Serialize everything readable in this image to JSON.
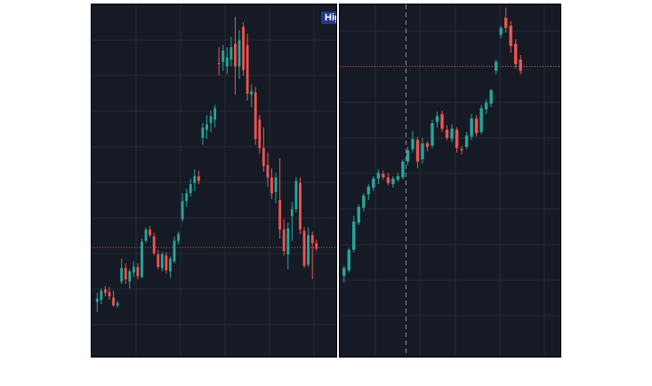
{
  "colors": {
    "background": "#161a25",
    "grid": "#242a37",
    "up": "#26a69a",
    "down": "#ef5350",
    "price_line": "#d2535a",
    "crosshair": "#9598a1"
  },
  "charts": {
    "left": {
      "badge_label": "Hig",
      "price_line_y": 9.0,
      "crosshair_x": null,
      "ylim": [
        0,
        30
      ],
      "candles": [
        {
          "o": 4.2,
          "h": 5.0,
          "l": 3.3,
          "c": 4.5
        },
        {
          "o": 4.4,
          "h": 5.4,
          "l": 4.0,
          "c": 5.2
        },
        {
          "o": 5.3,
          "h": 5.6,
          "l": 4.7,
          "c": 5.0
        },
        {
          "o": 5.1,
          "h": 5.5,
          "l": 4.4,
          "c": 4.7
        },
        {
          "o": 4.6,
          "h": 5.2,
          "l": 3.8,
          "c": 3.9
        },
        {
          "o": 3.9,
          "h": 4.3,
          "l": 3.7,
          "c": 4.1
        },
        {
          "o": 6.0,
          "h": 8.0,
          "l": 5.8,
          "c": 7.2
        },
        {
          "o": 7.2,
          "h": 7.6,
          "l": 5.8,
          "c": 6.2
        },
        {
          "o": 6.0,
          "h": 7.1,
          "l": 5.4,
          "c": 6.9
        },
        {
          "o": 6.8,
          "h": 7.8,
          "l": 6.4,
          "c": 7.3
        },
        {
          "o": 7.3,
          "h": 7.6,
          "l": 6.2,
          "c": 6.5
        },
        {
          "o": 6.4,
          "h": 9.8,
          "l": 6.3,
          "c": 9.5
        },
        {
          "o": 9.6,
          "h": 10.8,
          "l": 9.4,
          "c": 10.6
        },
        {
          "o": 10.6,
          "h": 10.9,
          "l": 9.9,
          "c": 10.1
        },
        {
          "o": 10.0,
          "h": 10.3,
          "l": 8.3,
          "c": 8.5
        },
        {
          "o": 8.4,
          "h": 8.8,
          "l": 7.1,
          "c": 7.3
        },
        {
          "o": 7.2,
          "h": 8.6,
          "l": 6.9,
          "c": 8.4
        },
        {
          "o": 8.3,
          "h": 8.6,
          "l": 6.7,
          "c": 7.0
        },
        {
          "o": 6.9,
          "h": 8.2,
          "l": 6.3,
          "c": 8.0
        },
        {
          "o": 7.8,
          "h": 10.0,
          "l": 7.6,
          "c": 9.6
        },
        {
          "o": 9.6,
          "h": 10.4,
          "l": 9.3,
          "c": 10.2
        },
        {
          "o": 11.5,
          "h": 13.8,
          "l": 11.3,
          "c": 13.1
        },
        {
          "o": 13.1,
          "h": 14.2,
          "l": 12.6,
          "c": 13.8
        },
        {
          "o": 13.8,
          "h": 15.1,
          "l": 13.5,
          "c": 14.6
        },
        {
          "o": 14.7,
          "h": 15.9,
          "l": 14.0,
          "c": 15.3
        },
        {
          "o": 15.3,
          "h": 15.8,
          "l": 14.6,
          "c": 14.9
        },
        {
          "o": 18.7,
          "h": 20.0,
          "l": 18.1,
          "c": 19.6
        },
        {
          "o": 19.4,
          "h": 20.7,
          "l": 18.6,
          "c": 19.9
        },
        {
          "o": 20.0,
          "h": 21.1,
          "l": 19.2,
          "c": 20.6
        },
        {
          "o": 20.3,
          "h": 21.6,
          "l": 19.6,
          "c": 21.3
        },
        {
          "o": 25.3,
          "h": 26.7,
          "l": 24.2,
          "c": 25.2
        },
        {
          "o": 25.4,
          "h": 26.9,
          "l": 24.6,
          "c": 26.4
        },
        {
          "o": 25.0,
          "h": 26.7,
          "l": 24.3,
          "c": 25.8
        },
        {
          "o": 25.6,
          "h": 27.6,
          "l": 25.0,
          "c": 26.7
        },
        {
          "o": 27.0,
          "h": 29.4,
          "l": 22.5,
          "c": 25.0
        },
        {
          "o": 25.0,
          "h": 28.2,
          "l": 23.9,
          "c": 27.3
        },
        {
          "o": 28.5,
          "h": 28.9,
          "l": 24.2,
          "c": 24.7
        },
        {
          "o": 26.9,
          "h": 27.9,
          "l": 22.0,
          "c": 22.6
        },
        {
          "o": 22.5,
          "h": 23.4,
          "l": 21.4,
          "c": 22.8
        },
        {
          "o": 22.7,
          "h": 23.2,
          "l": 18.1,
          "c": 18.6
        },
        {
          "o": 20.3,
          "h": 20.7,
          "l": 17.3,
          "c": 17.8
        },
        {
          "o": 17.8,
          "h": 19.6,
          "l": 15.7,
          "c": 16.2
        },
        {
          "o": 16.3,
          "h": 17.4,
          "l": 14.4,
          "c": 15.2
        },
        {
          "o": 15.2,
          "h": 16.0,
          "l": 13.3,
          "c": 13.8
        },
        {
          "o": 13.9,
          "h": 15.6,
          "l": 12.9,
          "c": 15.2
        },
        {
          "o": 13.2,
          "h": 16.9,
          "l": 9.8,
          "c": 10.6
        },
        {
          "o": 10.6,
          "h": 11.5,
          "l": 8.3,
          "c": 8.7
        },
        {
          "o": 8.4,
          "h": 11.2,
          "l": 7.1,
          "c": 10.7
        },
        {
          "o": 11.8,
          "h": 13.0,
          "l": 9.6,
          "c": 12.4
        },
        {
          "o": 12.4,
          "h": 15.2,
          "l": 12.1,
          "c": 14.9
        },
        {
          "o": 14.7,
          "h": 15.2,
          "l": 10.2,
          "c": 10.6
        },
        {
          "o": 10.5,
          "h": 10.8,
          "l": 7.2,
          "c": 7.4
        },
        {
          "o": 7.5,
          "h": 10.8,
          "l": 7.3,
          "c": 10.1
        },
        {
          "o": 10.1,
          "h": 10.4,
          "l": 6.2,
          "c": 9.4
        },
        {
          "o": 9.4,
          "h": 9.7,
          "l": 8.7,
          "c": 8.9
        }
      ]
    },
    "right": {
      "price_line_y": 25.0,
      "crosshair_x": 0.355,
      "ylim": [
        0,
        30
      ],
      "candles": [
        {
          "o": 6.5,
          "h": 7.4,
          "l": 5.9,
          "c": 7.2
        },
        {
          "o": 7.0,
          "h": 9.0,
          "l": 6.8,
          "c": 8.8
        },
        {
          "o": 8.8,
          "h": 11.8,
          "l": 8.6,
          "c": 11.3
        },
        {
          "o": 11.2,
          "h": 12.8,
          "l": 11.0,
          "c": 12.6
        },
        {
          "o": 12.5,
          "h": 13.8,
          "l": 12.2,
          "c": 13.6
        },
        {
          "o": 13.7,
          "h": 14.6,
          "l": 13.2,
          "c": 14.4
        },
        {
          "o": 14.3,
          "h": 15.3,
          "l": 14.0,
          "c": 15.1
        },
        {
          "o": 15.1,
          "h": 15.9,
          "l": 14.6,
          "c": 15.6
        },
        {
          "o": 15.5,
          "h": 15.8,
          "l": 15.0,
          "c": 15.2
        },
        {
          "o": 15.2,
          "h": 15.6,
          "l": 14.5,
          "c": 14.7
        },
        {
          "o": 14.6,
          "h": 15.3,
          "l": 14.3,
          "c": 15.1
        },
        {
          "o": 15.0,
          "h": 15.6,
          "l": 14.8,
          "c": 15.3
        },
        {
          "o": 15.2,
          "h": 16.8,
          "l": 15.0,
          "c": 16.6
        },
        {
          "o": 16.6,
          "h": 17.9,
          "l": 16.3,
          "c": 17.6
        },
        {
          "o": 17.7,
          "h": 19.3,
          "l": 17.4,
          "c": 18.6
        },
        {
          "o": 18.5,
          "h": 18.8,
          "l": 16.0,
          "c": 16.6
        },
        {
          "o": 16.8,
          "h": 18.7,
          "l": 16.4,
          "c": 18.2
        },
        {
          "o": 18.2,
          "h": 18.4,
          "l": 17.5,
          "c": 17.9
        },
        {
          "o": 18.0,
          "h": 20.3,
          "l": 17.8,
          "c": 20.0
        },
        {
          "o": 20.1,
          "h": 21.0,
          "l": 19.6,
          "c": 20.6
        },
        {
          "o": 20.8,
          "h": 21.1,
          "l": 19.2,
          "c": 19.5
        },
        {
          "o": 19.4,
          "h": 19.8,
          "l": 18.5,
          "c": 18.7
        },
        {
          "o": 18.6,
          "h": 19.9,
          "l": 18.3,
          "c": 19.5
        },
        {
          "o": 19.4,
          "h": 19.6,
          "l": 17.4,
          "c": 17.8
        },
        {
          "o": 17.7,
          "h": 18.0,
          "l": 17.2,
          "c": 17.6
        },
        {
          "o": 17.9,
          "h": 19.2,
          "l": 17.7,
          "c": 18.9
        },
        {
          "o": 18.8,
          "h": 20.8,
          "l": 18.5,
          "c": 20.4
        },
        {
          "o": 20.4,
          "h": 20.7,
          "l": 18.8,
          "c": 19.1
        },
        {
          "o": 19.2,
          "h": 21.6,
          "l": 19.0,
          "c": 21.3
        },
        {
          "o": 21.2,
          "h": 22.1,
          "l": 20.8,
          "c": 21.8
        },
        {
          "o": 21.7,
          "h": 23.0,
          "l": 21.4,
          "c": 22.9
        },
        {
          "o": 24.6,
          "h": 25.6,
          "l": 24.3,
          "c": 25.4
        },
        {
          "o": 27.8,
          "h": 28.6,
          "l": 27.5,
          "c": 28.4
        },
        {
          "o": 29.3,
          "h": 30.2,
          "l": 28.0,
          "c": 28.4
        },
        {
          "o": 28.6,
          "h": 29.0,
          "l": 26.2,
          "c": 26.8
        },
        {
          "o": 27.0,
          "h": 27.4,
          "l": 24.8,
          "c": 25.2
        },
        {
          "o": 25.6,
          "h": 26.0,
          "l": 24.3,
          "c": 24.6
        }
      ]
    }
  }
}
